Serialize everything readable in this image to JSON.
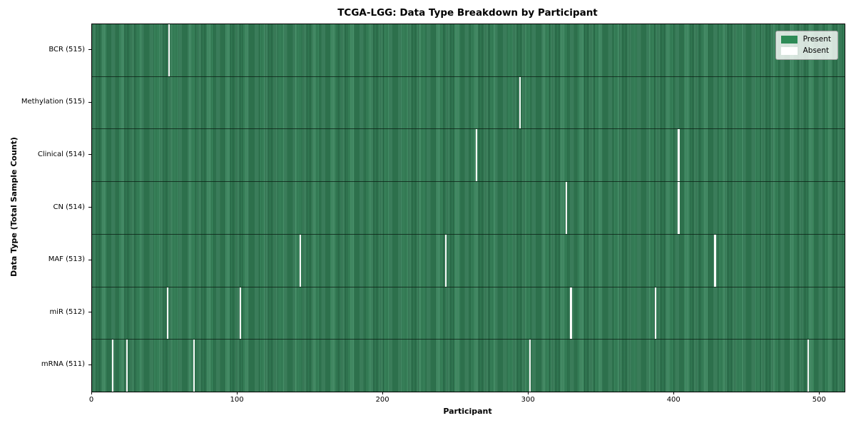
{
  "figure": {
    "title": "TCGA-LGG: Data Type Breakdown by Participant",
    "xlabel": "Participant",
    "ylabel": "Data Type (Total Sample Count)"
  },
  "legend": {
    "items": [
      {
        "label": "Present",
        "color": "#2e8b57"
      },
      {
        "label": "Absent",
        "color": "#ffffff"
      }
    ]
  },
  "chart_data": {
    "type": "heatmap",
    "title": "TCGA-LGG: Data Type Breakdown by Participant",
    "xlabel": "Participant",
    "ylabel": "Data Type (Total Sample Count)",
    "legend": [
      "Present",
      "Absent"
    ],
    "legend_position": "upper right",
    "present_color": "#2e8b57",
    "absent_color": "#ffffff",
    "grid": false,
    "x_ticks": [
      0,
      100,
      200,
      300,
      400,
      500
    ],
    "x_range": [
      0,
      517
    ],
    "total_participants": 516,
    "rows": [
      {
        "label": "BCR (515)",
        "data_type": "BCR",
        "present_count": 515,
        "absent_participants": [
          53
        ]
      },
      {
        "label": "Methylation (515)",
        "data_type": "Methylation",
        "present_count": 515,
        "absent_participants": [
          294
        ]
      },
      {
        "label": "Clinical (514)",
        "data_type": "Clinical",
        "present_count": 514,
        "absent_participants": [
          264,
          403
        ]
      },
      {
        "label": "CN (514)",
        "data_type": "CN",
        "present_count": 514,
        "absent_participants": [
          326,
          403
        ]
      },
      {
        "label": "MAF (513)",
        "data_type": "MAF",
        "present_count": 513,
        "absent_participants": [
          143,
          243,
          428
        ]
      },
      {
        "label": "miR (512)",
        "data_type": "miR",
        "present_count": 512,
        "absent_participants": [
          52,
          102,
          329,
          387
        ]
      },
      {
        "label": "mRNA (511)",
        "data_type": "mRNA",
        "present_count": 511,
        "absent_participants": [
          14,
          24,
          70,
          301,
          492
        ]
      }
    ]
  }
}
